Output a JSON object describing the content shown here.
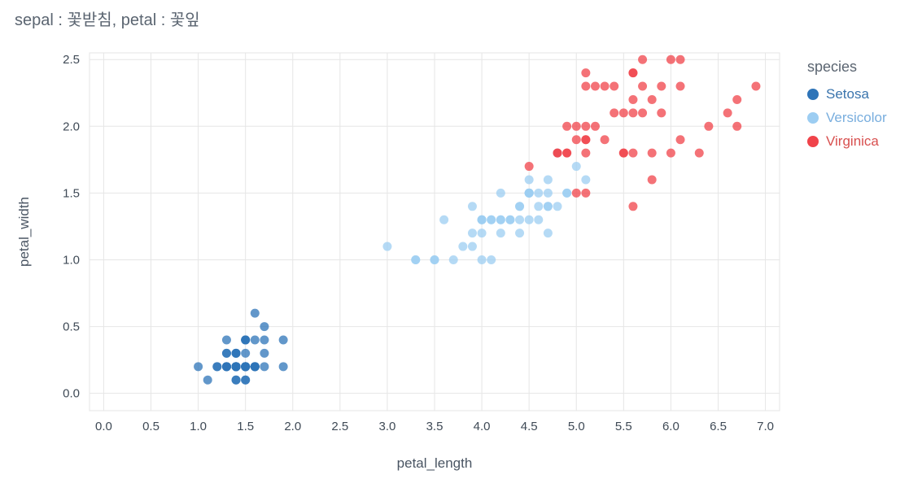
{
  "title": "sepal : 꽃받침, petal : 꽃잎",
  "colors": {
    "grid": "#e6e6e6",
    "tick_label": "#3f4a56",
    "axis_title": "#4a5563",
    "figure_title": "#5b6571",
    "background": "#ffffff"
  },
  "chart_data": {
    "type": "scatter",
    "title": "sepal : 꽃받침, petal : 꽃잎",
    "xlabel": "petal_length",
    "ylabel": "petal_width",
    "legend_title": "species",
    "legend_position": "right",
    "grid": true,
    "xlim": [
      -0.15,
      7.15
    ],
    "ylim": [
      -0.13,
      2.55
    ],
    "xticks": [
      0,
      0.5,
      1,
      1.5,
      2,
      2.5,
      3,
      3.5,
      4,
      4.5,
      5,
      5.5,
      6,
      6.5,
      7
    ],
    "xtick_labels": [
      "0.0",
      "0.5",
      "1.0",
      "1.5",
      "2.0",
      "2.5",
      "3.0",
      "3.5",
      "4.0",
      "4.5",
      "5.0",
      "5.5",
      "6.0",
      "6.5",
      "7.0"
    ],
    "yticks": [
      0,
      0.5,
      1,
      1.5,
      2,
      2.5
    ],
    "ytick_labels": [
      "0.0",
      "0.5",
      "1.0",
      "1.5",
      "2.0",
      "2.5"
    ],
    "series": [
      {
        "name": "Setosa",
        "color": "#2e74b8",
        "label_color": "#3a74ad",
        "x": [
          1.4,
          1.4,
          1.3,
          1.5,
          1.4,
          1.7,
          1.4,
          1.5,
          1.4,
          1.5,
          1.5,
          1.6,
          1.4,
          1.1,
          1.2,
          1.5,
          1.3,
          1.4,
          1.7,
          1.5,
          1.7,
          1.5,
          1.0,
          1.7,
          1.9,
          1.6,
          1.6,
          1.5,
          1.4,
          1.6,
          1.6,
          1.5,
          1.5,
          1.4,
          1.5,
          1.2,
          1.3,
          1.4,
          1.3,
          1.5,
          1.3,
          1.3,
          1.3,
          1.6,
          1.9,
          1.4,
          1.6,
          1.4,
          1.5,
          1.4
        ],
        "y": [
          0.2,
          0.2,
          0.2,
          0.2,
          0.2,
          0.4,
          0.3,
          0.2,
          0.2,
          0.1,
          0.2,
          0.2,
          0.1,
          0.1,
          0.2,
          0.4,
          0.4,
          0.3,
          0.3,
          0.3,
          0.2,
          0.4,
          0.2,
          0.5,
          0.2,
          0.2,
          0.4,
          0.2,
          0.2,
          0.2,
          0.2,
          0.4,
          0.1,
          0.2,
          0.2,
          0.2,
          0.2,
          0.1,
          0.2,
          0.2,
          0.3,
          0.3,
          0.2,
          0.6,
          0.4,
          0.3,
          0.2,
          0.2,
          0.2,
          0.2
        ]
      },
      {
        "name": "Versicolor",
        "color": "#9ccdf2",
        "label_color": "#79aede",
        "x": [
          4.7,
          4.5,
          4.9,
          4.0,
          4.6,
          4.5,
          4.7,
          3.3,
          4.6,
          3.9,
          3.5,
          4.2,
          4.0,
          4.7,
          3.6,
          4.4,
          4.5,
          4.1,
          4.5,
          3.9,
          4.8,
          4.0,
          4.9,
          4.7,
          4.3,
          4.4,
          4.8,
          5.0,
          4.5,
          3.5,
          3.8,
          3.7,
          3.9,
          5.1,
          4.5,
          4.5,
          4.7,
          4.4,
          4.1,
          4.0,
          4.4,
          4.6,
          4.0,
          3.3,
          4.2,
          4.2,
          4.2,
          4.3,
          3.0,
          4.1
        ],
        "y": [
          1.4,
          1.5,
          1.5,
          1.3,
          1.5,
          1.3,
          1.6,
          1.0,
          1.3,
          1.4,
          1.0,
          1.5,
          1.0,
          1.4,
          1.3,
          1.4,
          1.5,
          1.0,
          1.5,
          1.1,
          1.8,
          1.3,
          1.5,
          1.2,
          1.3,
          1.4,
          1.4,
          1.7,
          1.5,
          1.0,
          1.1,
          1.0,
          1.2,
          1.6,
          1.5,
          1.6,
          1.5,
          1.3,
          1.3,
          1.3,
          1.2,
          1.4,
          1.2,
          1.0,
          1.3,
          1.2,
          1.3,
          1.3,
          1.1,
          1.3
        ]
      },
      {
        "name": "Virginica",
        "color": "#f0434a",
        "label_color": "#d8504f",
        "x": [
          6.0,
          5.1,
          5.9,
          5.6,
          5.8,
          6.6,
          4.5,
          6.3,
          5.8,
          6.1,
          5.1,
          5.3,
          5.5,
          5.0,
          5.1,
          5.3,
          5.5,
          6.7,
          6.9,
          5.0,
          5.7,
          4.9,
          6.7,
          4.9,
          5.7,
          6.0,
          4.8,
          4.9,
          5.6,
          5.8,
          6.1,
          6.4,
          5.6,
          5.1,
          5.6,
          6.1,
          5.6,
          5.5,
          4.8,
          5.4,
          5.6,
          5.1,
          5.1,
          5.9,
          5.7,
          5.2,
          5.0,
          5.2,
          5.4,
          5.1
        ],
        "y": [
          2.5,
          1.9,
          2.1,
          1.8,
          2.2,
          2.1,
          1.7,
          1.8,
          1.8,
          2.5,
          2.0,
          1.9,
          2.1,
          2.0,
          2.4,
          2.3,
          1.8,
          2.2,
          2.3,
          1.5,
          2.3,
          2.0,
          2.0,
          1.8,
          2.1,
          1.8,
          1.8,
          1.8,
          2.1,
          1.6,
          1.9,
          2.0,
          2.2,
          1.5,
          1.4,
          2.3,
          2.4,
          1.8,
          1.8,
          2.1,
          2.4,
          2.3,
          1.9,
          2.3,
          2.5,
          2.3,
          1.9,
          2.0,
          2.3,
          1.8
        ]
      }
    ]
  }
}
